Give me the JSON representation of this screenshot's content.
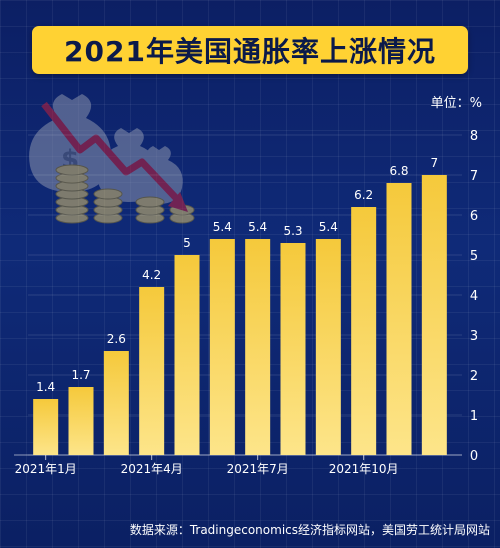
{
  "title": "2021年美国通胀率上涨情况",
  "unit_label": "单位：%",
  "source": "数据来源：Tradingeconomics经济指标网站，美国劳工统计局网站",
  "colors": {
    "bar": "#f5c93b",
    "bar_light": "#fde58a",
    "title_bg": "#ffd233",
    "bg": "#0f2a78"
  },
  "illustration": {
    "icon": "money-bags-coins-falling-arrow-icon",
    "bag_symbol": "$"
  },
  "chart_data": {
    "type": "bar",
    "categories": [
      "2021年1月",
      "2021年2月",
      "2021年3月",
      "2021年4月",
      "2021年5月",
      "2021年6月",
      "2021年7月",
      "2021年8月",
      "2021年9月",
      "2021年10月",
      "2021年11月",
      "2021年12月"
    ],
    "values": [
      1.4,
      1.7,
      2.6,
      4.2,
      5,
      5.4,
      5.4,
      5.3,
      5.4,
      6.2,
      6.8,
      7
    ],
    "value_labels": [
      "1.4",
      "1.7",
      "2.6",
      "4.2",
      "5",
      "5.4",
      "5.4",
      "5.3",
      "5.4",
      "6.2",
      "6.8",
      "7"
    ],
    "x_tick_labels": [
      "2021年1月",
      "",
      "",
      "2021年4月",
      "",
      "",
      "2021年7月",
      "",
      "",
      "2021年10月",
      "",
      ""
    ],
    "y_ticks": [
      0,
      1,
      2,
      3,
      4,
      5,
      6,
      7,
      8
    ],
    "ylim": [
      0,
      8
    ],
    "grid": true,
    "legend": "none"
  }
}
